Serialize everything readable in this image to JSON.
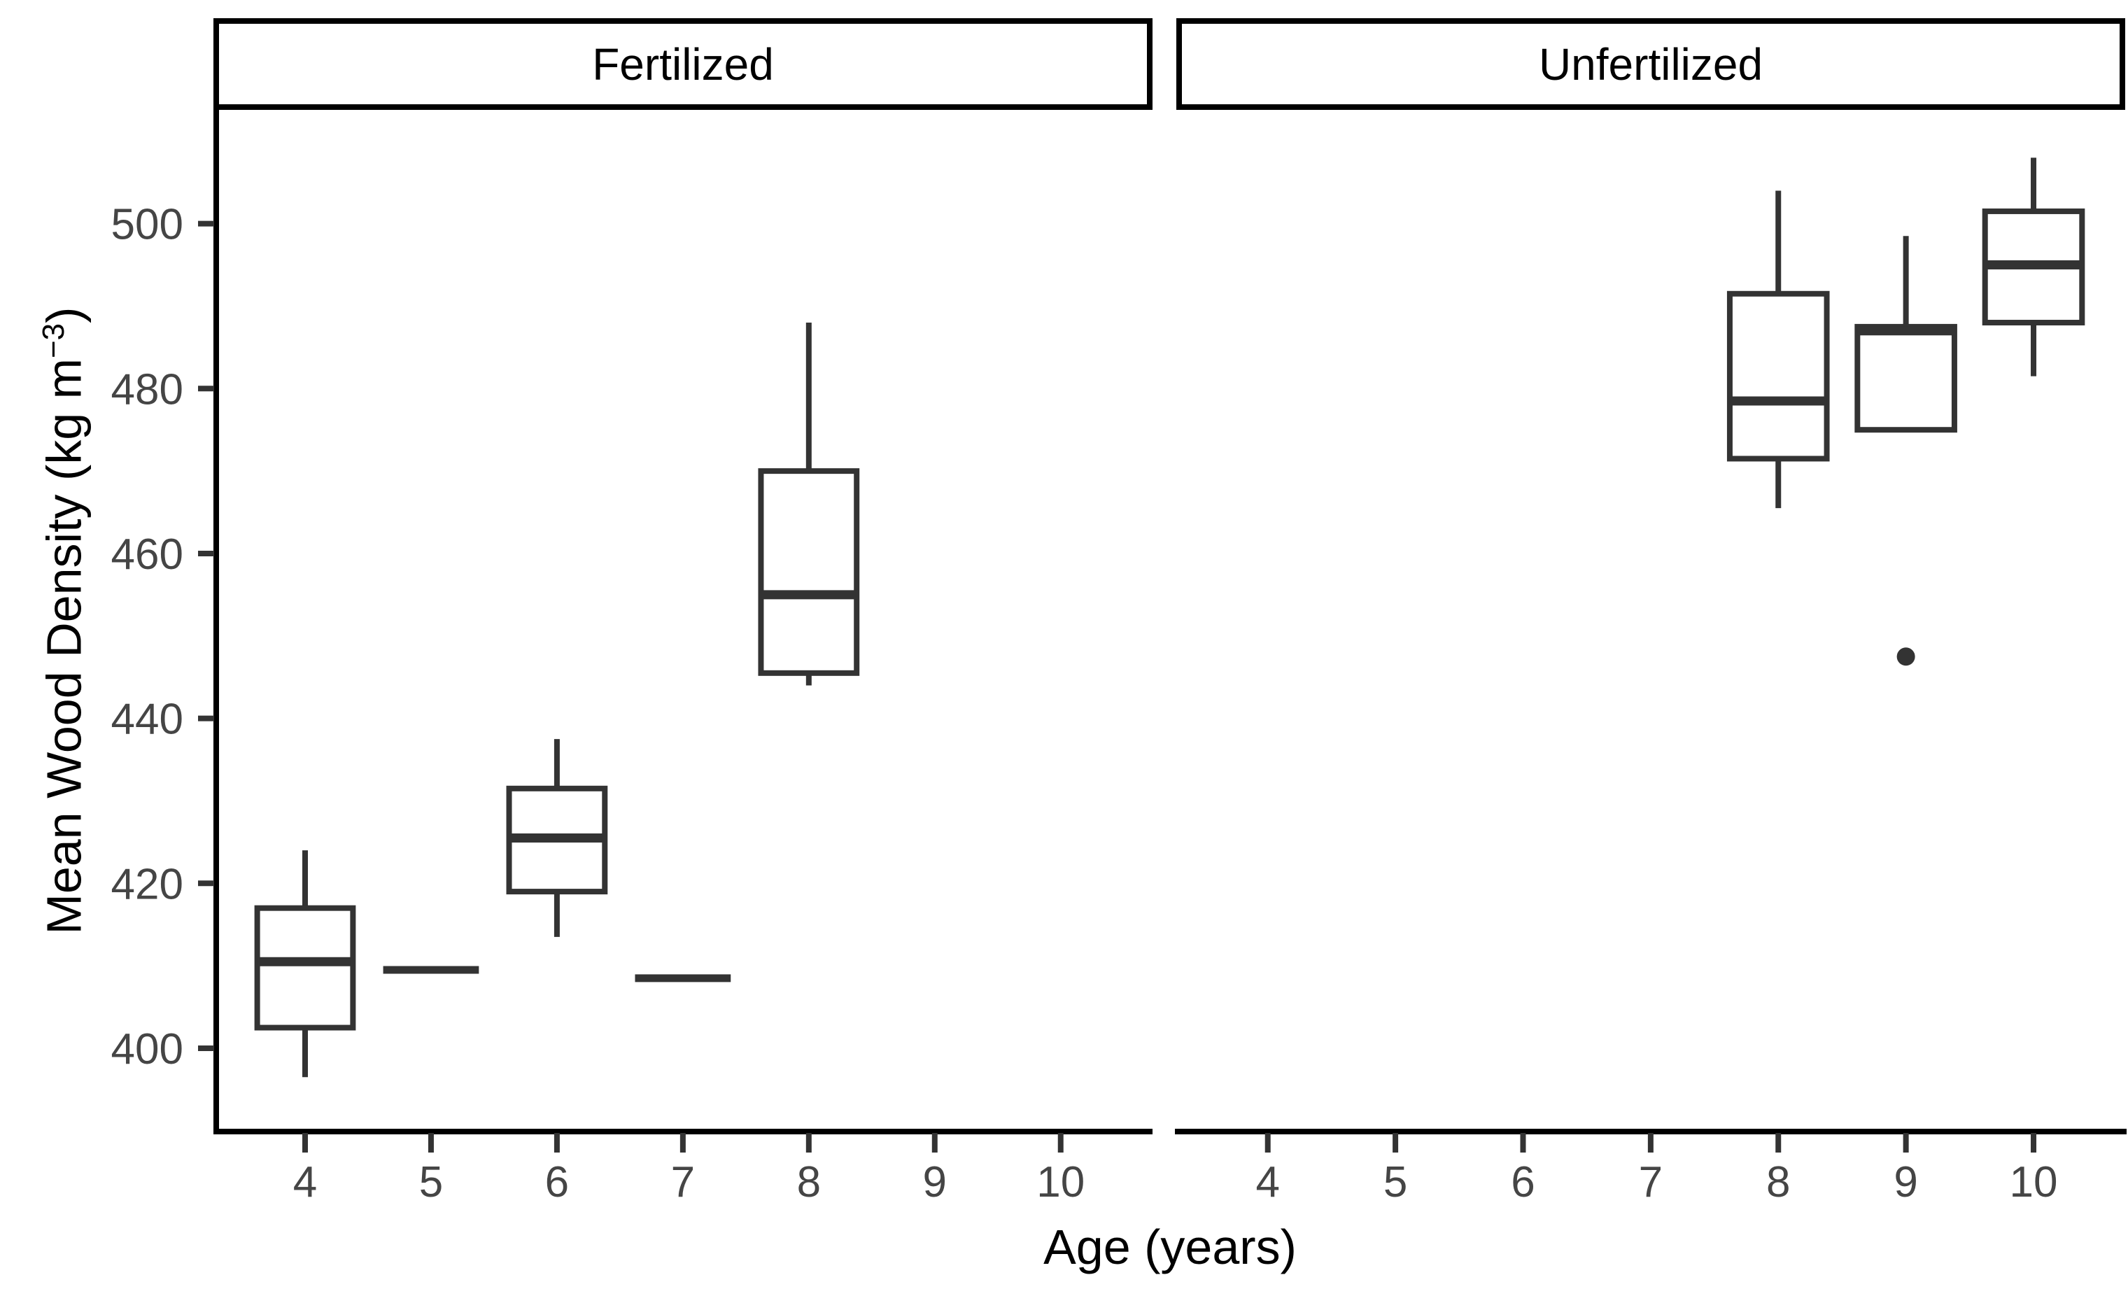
{
  "chart_data": {
    "type": "boxplot",
    "title": "",
    "xlabel": "Age (years)",
    "ylabel": "Mean Wood Density (kg m⁻³)",
    "ylabel_parts": {
      "main": "Mean Wood Density (kg m",
      "superscript": "−3",
      "end": ")"
    },
    "x_categories": [
      "4",
      "5",
      "6",
      "7",
      "8",
      "9",
      "10"
    ],
    "y_ticks": [
      400,
      420,
      440,
      460,
      480,
      500
    ],
    "ylim": [
      389.9,
      513.8
    ],
    "grid": "off",
    "legend_position": "none",
    "facets": [
      {
        "label": "Fertilized",
        "boxes": [
          {
            "age": "4",
            "whisker_low": 396.5,
            "q1": 402.5,
            "median": 410.5,
            "q3": 417,
            "whisker_high": 424
          },
          {
            "age": "5",
            "flat_value": 409.5
          },
          {
            "age": "6",
            "whisker_low": 413.5,
            "q1": 419,
            "median": 425.5,
            "q3": 431.5,
            "whisker_high": 437.5
          },
          {
            "age": "7",
            "flat_value": 408.5
          },
          {
            "age": "8",
            "whisker_low": 444,
            "q1": 445.5,
            "median": 455,
            "q3": 470,
            "whisker_high": 488
          }
        ]
      },
      {
        "label": "Unfertilized",
        "boxes": [
          {
            "age": "8",
            "whisker_low": 465.5,
            "q1": 471.5,
            "median": 478.5,
            "q3": 491.5,
            "whisker_high": 504
          },
          {
            "age": "9",
            "whisker_low": 475,
            "q1": 475,
            "median": 487,
            "q3": 487.5,
            "whisker_high": 498.5,
            "outliers": [
              447.5
            ]
          },
          {
            "age": "10",
            "whisker_low": 481.5,
            "q1": 488,
            "median": 495,
            "q3": 501.5,
            "whisker_high": 508
          }
        ]
      }
    ],
    "colors": {
      "box_stroke": "#333333",
      "axis": "#000000",
      "tick": "#333333",
      "tick_label": "#454545",
      "text": "#000000",
      "background": "#ffffff"
    }
  }
}
